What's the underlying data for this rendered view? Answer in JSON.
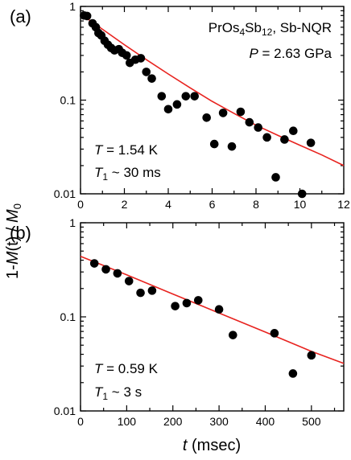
{
  "figure": {
    "ylabel": "1-M(t) / M0",
    "xlabel": "t (msec)"
  },
  "colors": {
    "points": "#000000",
    "fit": "#e8231f",
    "axes": "#000000"
  },
  "chart_data": [
    {
      "type": "scatter",
      "panel_label": "(a)",
      "scale": {
        "y": "log",
        "x": "linear"
      },
      "xlim": [
        0,
        12
      ],
      "ylim": [
        0.01,
        1
      ],
      "x_ticks": [
        0,
        2,
        4,
        6,
        8,
        10,
        12
      ],
      "y_ticks": [
        {
          "value": 0.01,
          "label": "0.01"
        },
        {
          "value": 0.1,
          "label": "0.1"
        },
        {
          "value": 1,
          "label": "1"
        }
      ],
      "annotations": {
        "sample": "PrOs4Sb12, Sb-NQR",
        "pressure": "P = 2.63 GPa",
        "temperature": "T = 1.54 K",
        "t1": "T1 ~ 30 ms"
      },
      "series": [
        {
          "points": [
            [
              0.16,
              0.8
            ],
            [
              0.3,
              0.79
            ],
            [
              0.55,
              0.66
            ],
            [
              0.7,
              0.6
            ],
            [
              0.82,
              0.52
            ],
            [
              0.95,
              0.49
            ],
            [
              1.1,
              0.43
            ],
            [
              1.25,
              0.39
            ],
            [
              1.4,
              0.36
            ],
            [
              1.55,
              0.34
            ],
            [
              1.75,
              0.35
            ],
            [
              1.9,
              0.32
            ],
            [
              2.1,
              0.3
            ],
            [
              2.25,
              0.25
            ],
            [
              2.5,
              0.27
            ],
            [
              2.75,
              0.28
            ],
            [
              3.0,
              0.2
            ],
            [
              3.25,
              0.17
            ],
            [
              3.7,
              0.11
            ],
            [
              4.0,
              0.08
            ],
            [
              4.4,
              0.09
            ],
            [
              4.8,
              0.11
            ],
            [
              5.2,
              0.11
            ],
            [
              5.75,
              0.065
            ],
            [
              6.1,
              0.034
            ],
            [
              6.5,
              0.073
            ],
            [
              6.9,
              0.032
            ],
            [
              7.3,
              0.075
            ],
            [
              7.7,
              0.058
            ],
            [
              8.1,
              0.051
            ],
            [
              8.5,
              0.04
            ],
            [
              8.9,
              0.015
            ],
            [
              9.3,
              0.038
            ],
            [
              9.7,
              0.047
            ],
            [
              10.1,
              0.01
            ],
            [
              10.5,
              0.035
            ]
          ]
        },
        {
          "fit": [
            [
              0,
              0.83
            ],
            [
              1,
              0.57
            ],
            [
              2,
              0.39
            ],
            [
              3,
              0.27
            ],
            [
              4,
              0.19
            ],
            [
              5,
              0.135
            ],
            [
              6,
              0.097
            ],
            [
              7,
              0.072
            ],
            [
              8,
              0.054
            ],
            [
              9,
              0.042
            ],
            [
              10,
              0.033
            ],
            [
              11,
              0.026
            ],
            [
              12,
              0.02
            ]
          ]
        }
      ]
    },
    {
      "type": "scatter",
      "panel_label": "(b)",
      "scale": {
        "y": "log",
        "x": "linear"
      },
      "xlim": [
        0,
        570
      ],
      "ylim": [
        0.01,
        1
      ],
      "x_ticks": [
        0,
        100,
        200,
        300,
        400,
        500
      ],
      "y_ticks": [
        {
          "value": 0.01,
          "label": "0.01"
        },
        {
          "value": 0.1,
          "label": "0.1"
        },
        {
          "value": 1,
          "label": "1"
        }
      ],
      "annotations": {
        "temperature": "T = 0.59 K",
        "t1": "T1 ~ 3 s"
      },
      "series": [
        {
          "points": [
            [
              30,
              0.37
            ],
            [
              55,
              0.32
            ],
            [
              80,
              0.29
            ],
            [
              105,
              0.24
            ],
            [
              130,
              0.18
            ],
            [
              155,
              0.19
            ],
            [
              205,
              0.13
            ],
            [
              230,
              0.14
            ],
            [
              255,
              0.15
            ],
            [
              300,
              0.12
            ],
            [
              330,
              0.064
            ],
            [
              420,
              0.067
            ],
            [
              460,
              0.025
            ],
            [
              500,
              0.039
            ]
          ]
        },
        {
          "fit": [
            [
              0,
              0.44
            ],
            [
              100,
              0.28
            ],
            [
              200,
              0.175
            ],
            [
              300,
              0.11
            ],
            [
              400,
              0.069
            ],
            [
              500,
              0.043
            ],
            [
              570,
              0.032
            ]
          ]
        }
      ]
    }
  ]
}
